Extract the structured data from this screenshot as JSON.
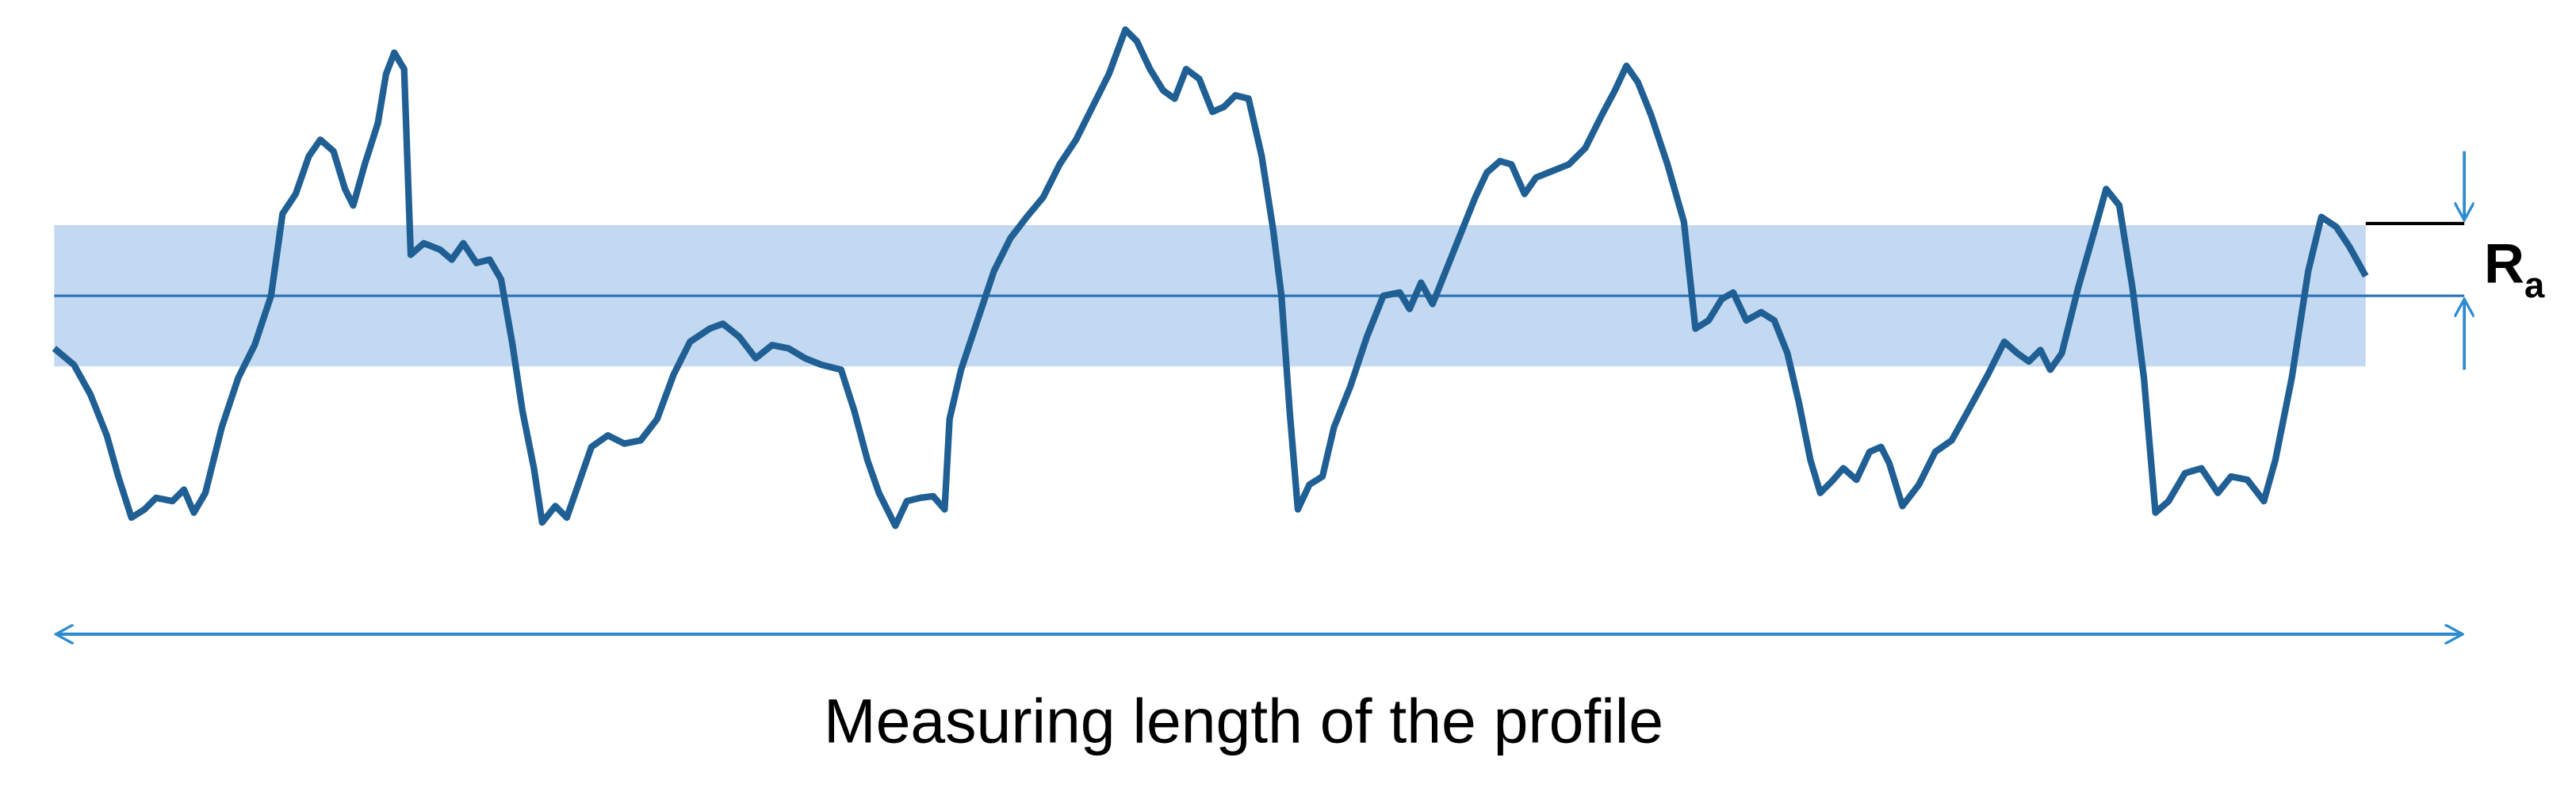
{
  "axis_label": "Measuring length of the profile",
  "ra_label": {
    "symbol": "R",
    "subscript": "a"
  }
}
